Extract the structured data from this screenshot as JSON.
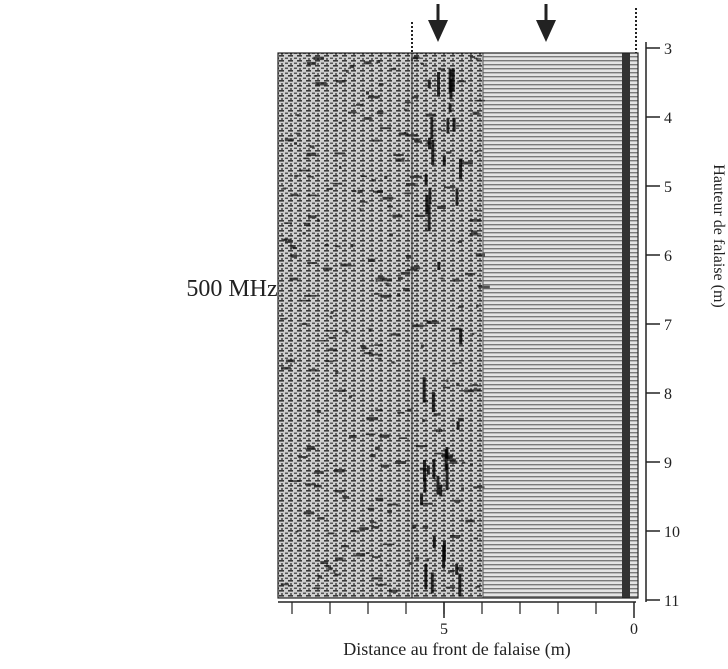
{
  "figure": {
    "label": "500 MHz",
    "xlabel": "Distance au front de falaise (m)",
    "ylabel": "Hauteur de falaise (m)",
    "yticks": [
      3,
      4,
      5,
      6,
      7,
      8,
      9,
      10,
      11
    ],
    "xticks": [
      5,
      0
    ]
  }
}
